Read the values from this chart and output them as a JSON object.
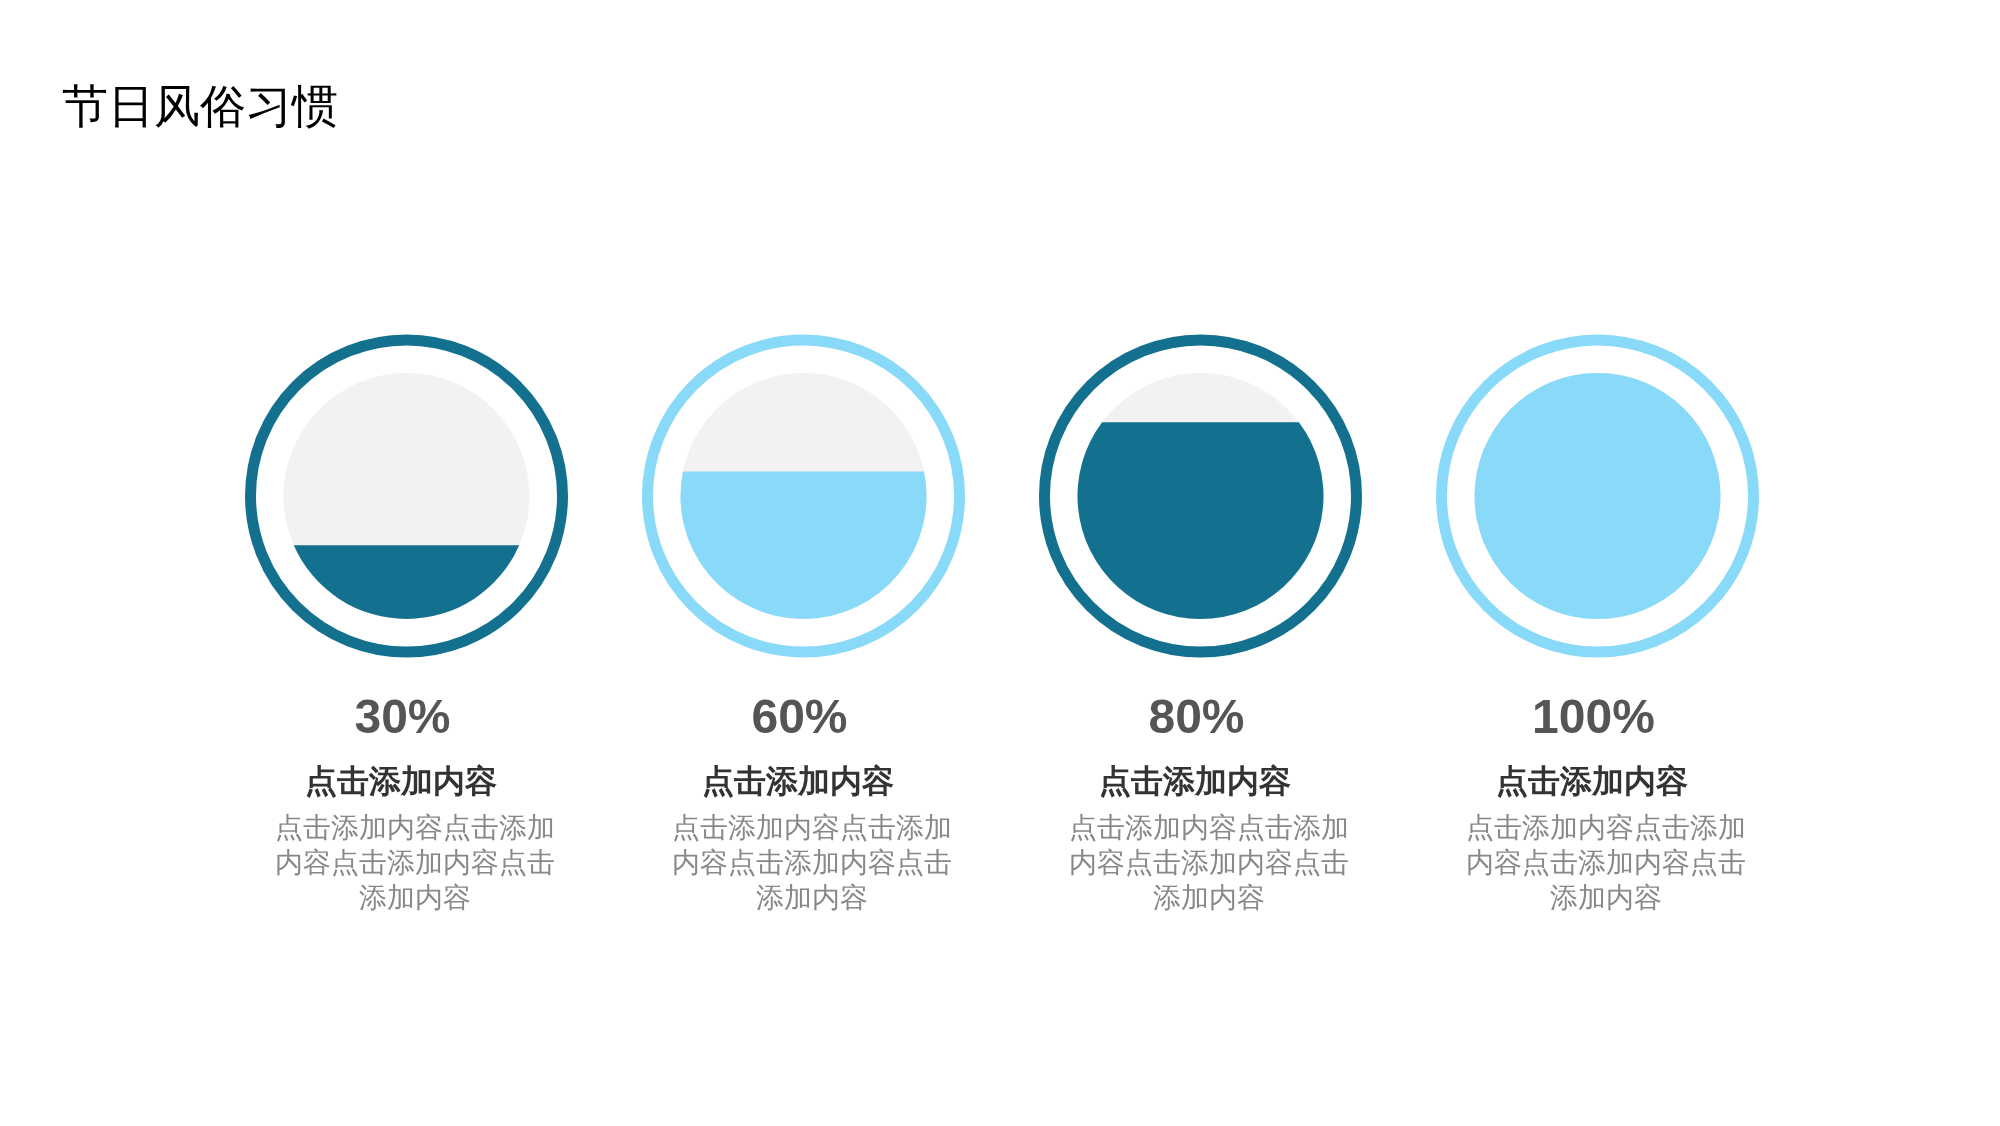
{
  "chart_data": {
    "type": "other",
    "title": "节日风俗习惯",
    "categories": [
      "点击添加内容",
      "点击添加内容",
      "点击添加内容",
      "点击添加内容"
    ],
    "values": [
      30,
      60,
      80,
      100
    ],
    "value_labels": [
      "30%",
      "60%",
      "80%",
      "100%"
    ],
    "colors": [
      "#13718f",
      "#89d9f9",
      "#13718f",
      "#89d9f9"
    ],
    "annotations": [
      "点击添加内容点击添加内容点击添加内容点击添加内容",
      "点击添加内容点击添加内容点击添加内容点击添加内容",
      "点击添加内容点击添加内容点击添加内容点击添加内容",
      "点击添加内容点击添加内容点击添加内容点击添加内容"
    ]
  }
}
